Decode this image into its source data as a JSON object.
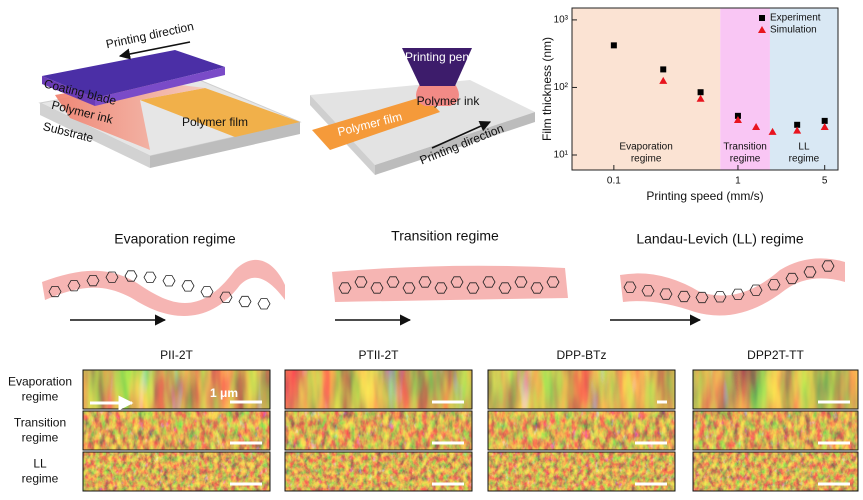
{
  "panel_a": {
    "printing_direction": "Printing direction",
    "coating_blade": "Coating blade",
    "polymer_ink": "Polymer ink",
    "substrate": "Substrate",
    "polymer_film": "Polymer film"
  },
  "panel_b": {
    "printing_pen": "Printing pen",
    "polymer_ink": "Polymer ink",
    "polymer_film": "Polymer film",
    "printing_direction": "Printing direction"
  },
  "chart_data": {
    "type": "scatter",
    "x_label": "Printing speed (mm/s)",
    "y_label": "Film thickness (nm)",
    "x_log": true,
    "y_log": true,
    "xlim": [
      0.046,
      6.4
    ],
    "ylim": [
      6,
      1500
    ],
    "xticks": [
      0.1,
      1,
      5
    ],
    "yticks": [
      {
        "value": 10,
        "label": "10¹"
      },
      {
        "value": 100,
        "label": "10²"
      },
      {
        "value": 1000,
        "label": "10³"
      }
    ],
    "legend": "top-right",
    "regions": [
      {
        "label_lines": [
          "Evaporation",
          "regime"
        ],
        "xlim": [
          0.046,
          0.72
        ],
        "color": "#fbe3d3"
      },
      {
        "label_lines": [
          "Transition",
          "regime"
        ],
        "xlim": [
          0.72,
          1.81
        ],
        "color": "#f9c6f4"
      },
      {
        "label_lines": [
          "LL",
          "regime"
        ],
        "xlim": [
          1.81,
          6.4
        ],
        "color": "#d9e8f4"
      }
    ],
    "series": [
      {
        "name": "Experiment",
        "color": "#000000",
        "marker": "square",
        "x": [
          0.1,
          0.25,
          0.5,
          1,
          3,
          5
        ],
        "values": [
          420,
          185,
          85,
          38,
          28,
          32
        ]
      },
      {
        "name": "Simulation",
        "color": "#e8141e",
        "marker": "triangle",
        "x": [
          0.25,
          0.5,
          1,
          1.4,
          1.9,
          3,
          5
        ],
        "values": [
          125,
          68,
          33,
          26,
          22,
          23,
          26
        ]
      }
    ]
  },
  "regimes": [
    "Evaporation regime",
    "Transition regime",
    "Landau-Levich (LL) regime"
  ],
  "afm": {
    "columns": [
      "PII-2T",
      "PTII-2T",
      "DPP-BTz",
      "DPP2T-TT"
    ],
    "rows": [
      [
        "Evaporation",
        "regime"
      ],
      [
        "Transition",
        "regime"
      ],
      [
        "LL",
        "regime"
      ]
    ],
    "scale_label": "1 μm"
  }
}
